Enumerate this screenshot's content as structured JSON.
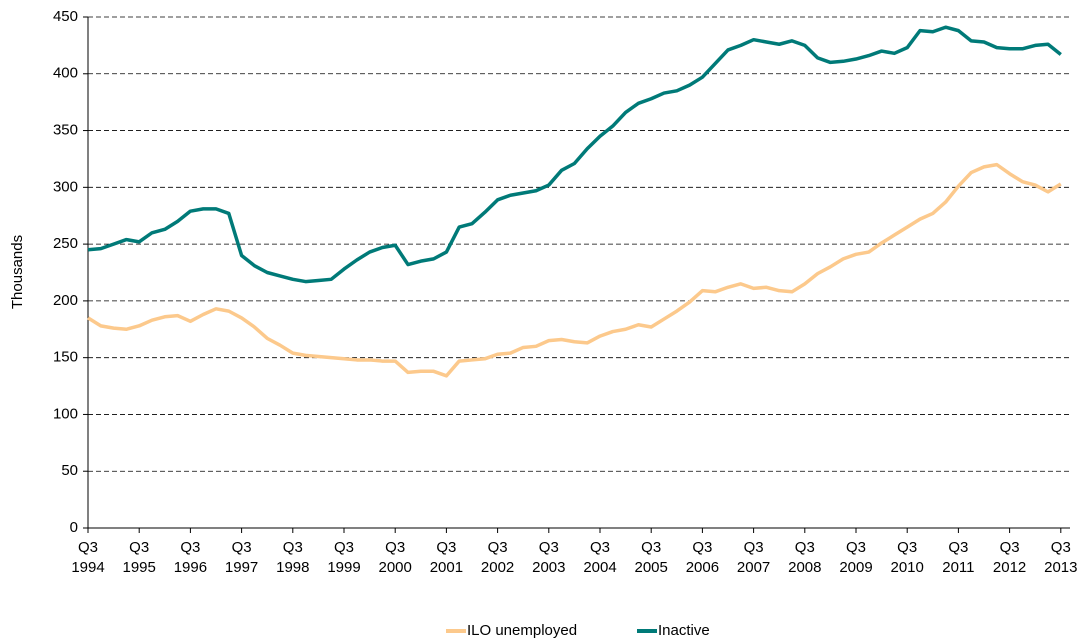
{
  "chart_data": {
    "type": "line",
    "y_label": "Thousands",
    "categories": [
      "Q3 1994",
      null,
      null,
      null,
      "Q3 1995",
      null,
      null,
      null,
      "Q3 1996",
      null,
      null,
      null,
      "Q3 1997",
      null,
      null,
      null,
      "Q3 1998",
      null,
      null,
      null,
      "Q3 1999",
      null,
      null,
      null,
      "Q3 2000",
      null,
      null,
      null,
      "Q3 2001",
      null,
      null,
      null,
      "Q3 2002",
      null,
      null,
      null,
      "Q3 2003",
      null,
      null,
      null,
      "Q3 2004",
      null,
      null,
      null,
      "Q3 2005",
      null,
      null,
      null,
      "Q3 2006",
      null,
      null,
      null,
      "Q3 2007",
      null,
      null,
      null,
      "Q3 2008",
      null,
      null,
      null,
      "Q3 2009",
      null,
      null,
      null,
      "Q3 2010",
      null,
      null,
      null,
      "Q3 2011",
      null,
      null,
      null,
      "Q3 2012",
      null,
      null,
      null,
      "Q3 2013"
    ],
    "series": [
      {
        "name": "ILO unemployed",
        "color": "#fcc98c",
        "values": [
          185,
          178,
          176,
          175,
          178,
          183,
          186,
          187,
          182,
          188,
          193,
          191,
          185,
          177,
          167,
          161,
          154,
          152,
          151,
          150,
          149,
          148,
          148,
          147,
          147,
          137,
          138,
          138,
          134,
          147,
          148,
          149,
          153,
          154,
          159,
          160,
          165,
          166,
          164,
          163,
          169,
          173,
          175,
          179,
          177,
          184,
          191,
          199,
          209,
          208,
          212,
          215,
          211,
          212,
          209,
          208,
          215,
          224,
          230,
          237,
          241,
          243,
          251,
          258,
          265,
          272,
          277,
          287,
          301,
          313,
          318,
          320,
          312,
          305,
          302,
          296,
          303
        ]
      },
      {
        "name": "Inactive",
        "color": "#007a78",
        "values": [
          245,
          246,
          250,
          254,
          252,
          260,
          263,
          270,
          279,
          281,
          281,
          277,
          240,
          231,
          225,
          222,
          219,
          217,
          218,
          219,
          228,
          236,
          243,
          247,
          249,
          232,
          235,
          237,
          243,
          265,
          268,
          278,
          289,
          293,
          295,
          297,
          302,
          315,
          321,
          334,
          345,
          354,
          366,
          374,
          378,
          383,
          385,
          390,
          397,
          409,
          421,
          425,
          430,
          428,
          426,
          429,
          425,
          414,
          410,
          411,
          413,
          416,
          420,
          418,
          423,
          438,
          437,
          441,
          438,
          429,
          428,
          423,
          422,
          422,
          425,
          426,
          417
        ]
      }
    ],
    "ylim": [
      0,
      450
    ],
    "yticks": [
      0,
      50,
      100,
      150,
      200,
      250,
      300,
      350,
      400,
      450
    ],
    "grid": true,
    "legend": "bottom"
  }
}
